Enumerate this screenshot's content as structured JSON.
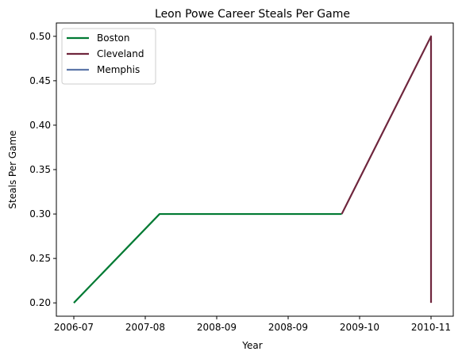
{
  "chart_data": {
    "type": "line",
    "title": "Leon Powe Career Steals Per Game",
    "xlabel": "Year",
    "ylabel": "Steals Per Game",
    "x_tick_labels": [
      "2006-07",
      "2007-08",
      "2008-09",
      "2008-09",
      "2009-10",
      "2010-11"
    ],
    "x_domain": [
      0,
      5
    ],
    "ylim": [
      0.185,
      0.515
    ],
    "y_ticks": [
      0.2,
      0.25,
      0.3,
      0.35,
      0.4,
      0.45,
      0.5
    ],
    "y_tick_labels": [
      "0.20",
      "0.25",
      "0.30",
      "0.35",
      "0.40",
      "0.45",
      "0.50"
    ],
    "legend_position": "top-left",
    "grid": false,
    "series": [
      {
        "name": "Boston",
        "color": "#007a33",
        "points": [
          {
            "x": 0,
            "y": 0.2
          },
          {
            "x": 1.2,
            "y": 0.3
          },
          {
            "x": 3.75,
            "y": 0.3
          }
        ]
      },
      {
        "name": "Cleveland",
        "color": "#6f263d",
        "points": [
          {
            "x": 3.75,
            "y": 0.3
          },
          {
            "x": 5,
            "y": 0.5
          },
          {
            "x": 5,
            "y": 0.2
          }
        ]
      },
      {
        "name": "Memphis",
        "color": "#5d76a9",
        "points": [
          {
            "x": 5,
            "y": 0.2
          },
          {
            "x": 5,
            "y": 0.2
          }
        ]
      }
    ]
  }
}
